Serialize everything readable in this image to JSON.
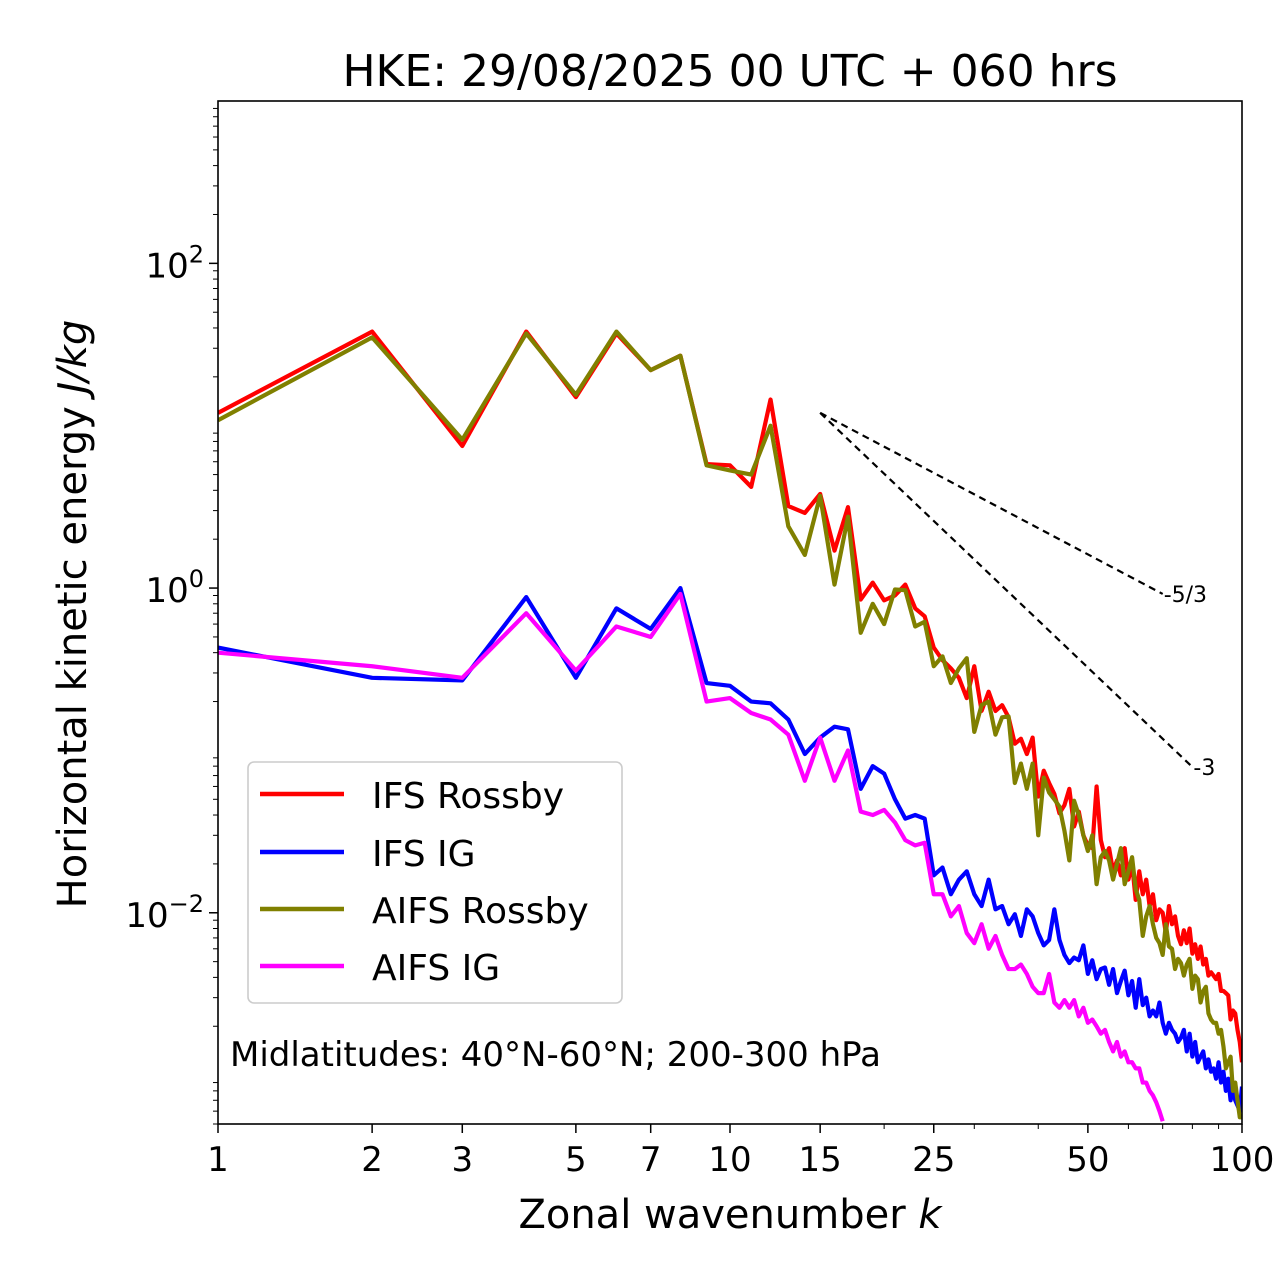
{
  "chart_data": {
    "type": "line",
    "title": "HKE: 29/08/2025 00 UTC + 060 hrs",
    "xlabel": "Zonal wavenumber",
    "xlabel_var": "k",
    "ylabel": "Horizontal kinetic energy",
    "ylabel_unit": "J/kg",
    "xscale": "log",
    "yscale": "log",
    "xlim": [
      1,
      100
    ],
    "ylim": [
      0.0005,
      1000
    ],
    "xticks": [
      {
        "value": 1,
        "label": "1"
      },
      {
        "value": 2,
        "label": "2"
      },
      {
        "value": 3,
        "label": "3"
      },
      {
        "value": 5,
        "label": "5"
      },
      {
        "value": 7,
        "label": "7"
      },
      {
        "value": 10,
        "label": "10"
      },
      {
        "value": 15,
        "label": "15"
      },
      {
        "value": 25,
        "label": "25"
      },
      {
        "value": 50,
        "label": "50"
      },
      {
        "value": 100,
        "label": "100"
      }
    ],
    "yticks": [
      {
        "value": 0.01,
        "base": "10",
        "exp": "−2"
      },
      {
        "value": 1,
        "base": "10",
        "exp": "0"
      },
      {
        "value": 100,
        "base": "10",
        "exp": "2"
      }
    ],
    "legend_location": "lower-left",
    "annotation": "Midlatitudes: 40°N-60°N; 200-300 hPa",
    "reference_lines": [
      {
        "slope": -1.6667,
        "label": "-5/3",
        "x": [
          15,
          70
        ],
        "y": [
          12.0,
          0.92
        ]
      },
      {
        "slope": -3,
        "label": "-3",
        "x": [
          15,
          80
        ],
        "y": [
          12.0,
          0.079
        ]
      }
    ],
    "series": [
      {
        "name": "IFS Rossby",
        "color": "#ff0000",
        "x": [
          1,
          2,
          3,
          4,
          5,
          6,
          7,
          8,
          9,
          10,
          11,
          12,
          13,
          14,
          15,
          16,
          17,
          18,
          19,
          20,
          21,
          22,
          23,
          24,
          25,
          26,
          27,
          28,
          29,
          30,
          31,
          32,
          33,
          34,
          35,
          36,
          37,
          38,
          39,
          40,
          41,
          42,
          43,
          44,
          45,
          46,
          47,
          48,
          49,
          50,
          51,
          52,
          53,
          54,
          55,
          56,
          57,
          58,
          59,
          60,
          61,
          62,
          63,
          64,
          65,
          66,
          67,
          68,
          69,
          70,
          71,
          72,
          73,
          74,
          75,
          76,
          77,
          78,
          79,
          80,
          81,
          82,
          83,
          84,
          85,
          86,
          87,
          88,
          89,
          90,
          91,
          92,
          93,
          94,
          95,
          96,
          97,
          98,
          99,
          100
        ],
        "y": [
          12.0,
          38.0,
          7.5,
          38.0,
          15.0,
          37.0,
          22.0,
          27.0,
          5.8,
          5.7,
          4.2,
          14.5,
          3.2,
          2.9,
          3.8,
          1.7,
          3.15,
          0.85,
          1.08,
          0.84,
          0.9,
          1.05,
          0.75,
          0.67,
          0.43,
          0.36,
          0.32,
          0.28,
          0.21,
          0.33,
          0.175,
          0.23,
          0.175,
          0.19,
          0.16,
          0.11,
          0.118,
          0.095,
          0.12,
          0.052,
          0.075,
          0.063,
          0.054,
          0.041,
          0.046,
          0.058,
          0.034,
          0.042,
          0.03,
          0.026,
          0.025,
          0.06,
          0.028,
          0.022,
          0.025,
          0.018,
          0.021,
          0.017,
          0.025,
          0.016,
          0.02,
          0.012,
          0.018,
          0.013,
          0.016,
          0.011,
          0.013,
          0.009,
          0.0105,
          0.01,
          0.0075,
          0.011,
          0.0085,
          0.0095,
          0.0072,
          0.0064,
          0.0078,
          0.0065,
          0.008,
          0.0056,
          0.0064,
          0.0052,
          0.0062,
          0.0048,
          0.0052,
          0.0041,
          0.0043,
          0.0041,
          0.0039,
          0.0042,
          0.0033,
          0.0033,
          0.0032,
          0.0031,
          0.0022,
          0.0025,
          0.0024,
          0.0019,
          0.0016,
          0.0012
        ]
      },
      {
        "name": "IFS IG",
        "color": "#0000ff",
        "x": [
          1,
          2,
          3,
          4,
          5,
          6,
          7,
          8,
          9,
          10,
          11,
          12,
          13,
          14,
          15,
          16,
          17,
          18,
          19,
          20,
          21,
          22,
          23,
          24,
          25,
          26,
          27,
          28,
          29,
          30,
          31,
          32,
          33,
          34,
          35,
          36,
          37,
          38,
          39,
          40,
          41,
          42,
          43,
          44,
          45,
          46,
          47,
          48,
          49,
          50,
          51,
          52,
          53,
          54,
          55,
          56,
          57,
          58,
          59,
          60,
          61,
          62,
          63,
          64,
          65,
          66,
          67,
          68,
          69,
          70,
          71,
          72,
          73,
          74,
          75,
          76,
          77,
          78,
          79,
          80,
          81,
          82,
          83,
          84,
          85,
          86,
          87,
          88,
          89,
          90,
          91,
          92,
          93,
          94,
          95,
          96,
          97,
          98,
          99,
          100
        ],
        "y": [
          0.43,
          0.28,
          0.27,
          0.88,
          0.28,
          0.75,
          0.56,
          1.0,
          0.26,
          0.25,
          0.2,
          0.195,
          0.155,
          0.095,
          0.12,
          0.14,
          0.135,
          0.058,
          0.08,
          0.072,
          0.05,
          0.038,
          0.04,
          0.038,
          0.017,
          0.019,
          0.013,
          0.016,
          0.018,
          0.013,
          0.011,
          0.016,
          0.0105,
          0.011,
          0.0085,
          0.0098,
          0.0072,
          0.0105,
          0.0095,
          0.0075,
          0.0063,
          0.0068,
          0.0105,
          0.0068,
          0.0055,
          0.0049,
          0.0053,
          0.0051,
          0.0063,
          0.0042,
          0.0051,
          0.0039,
          0.0045,
          0.0046,
          0.0036,
          0.0045,
          0.0032,
          0.0038,
          0.0044,
          0.0031,
          0.0038,
          0.0026,
          0.0039,
          0.0027,
          0.003,
          0.0023,
          0.0025,
          0.0023,
          0.0028,
          0.0021,
          0.0018,
          0.0021,
          0.0019,
          0.0018,
          0.0016,
          0.0017,
          0.0019,
          0.0014,
          0.0018,
          0.0013,
          0.0016,
          0.0012,
          0.0013,
          0.0014,
          0.0011,
          0.00125,
          0.00105,
          0.0011,
          0.00095,
          0.0012,
          0.0009,
          0.00105,
          0.0008,
          0.00095,
          0.0007,
          0.00085,
          0.0007,
          0.00065,
          0.0006,
          0.00085
        ]
      },
      {
        "name": "AIFS Rossby",
        "color": "#808000",
        "x": [
          1,
          2,
          3,
          4,
          5,
          6,
          7,
          8,
          9,
          10,
          11,
          12,
          13,
          14,
          15,
          16,
          17,
          18,
          19,
          20,
          21,
          22,
          23,
          24,
          25,
          26,
          27,
          28,
          29,
          30,
          31,
          32,
          33,
          34,
          35,
          36,
          37,
          38,
          39,
          40,
          41,
          42,
          43,
          44,
          45,
          46,
          47,
          48,
          49,
          50,
          51,
          52,
          53,
          54,
          55,
          56,
          57,
          58,
          59,
          60,
          61,
          62,
          63,
          64,
          65,
          66,
          67,
          68,
          69,
          70,
          71,
          72,
          73,
          74,
          75,
          76,
          77,
          78,
          79,
          80,
          81,
          82,
          83,
          84,
          85,
          86,
          87,
          88,
          89,
          90,
          91,
          92,
          93,
          94,
          95,
          96,
          97,
          98,
          99,
          100
        ],
        "y": [
          10.8,
          35.0,
          8.2,
          37.0,
          15.5,
          38.0,
          22.0,
          27.0,
          5.7,
          5.3,
          5.0,
          10.0,
          2.4,
          1.6,
          3.7,
          1.05,
          2.75,
          0.53,
          0.8,
          0.6,
          0.98,
          0.97,
          0.58,
          0.62,
          0.33,
          0.38,
          0.26,
          0.32,
          0.37,
          0.13,
          0.19,
          0.2,
          0.125,
          0.16,
          0.162,
          0.063,
          0.083,
          0.058,
          0.083,
          0.03,
          0.068,
          0.055,
          0.05,
          0.045,
          0.032,
          0.021,
          0.049,
          0.04,
          0.03,
          0.024,
          0.03,
          0.015,
          0.022,
          0.024,
          0.021,
          0.016,
          0.02,
          0.025,
          0.015,
          0.018,
          0.022,
          0.014,
          0.012,
          0.0072,
          0.0095,
          0.011,
          0.0085,
          0.007,
          0.0065,
          0.0055,
          0.0085,
          0.0062,
          0.006,
          0.0045,
          0.0052,
          0.0049,
          0.0041,
          0.0048,
          0.0052,
          0.0034,
          0.0041,
          0.0039,
          0.0028,
          0.0033,
          0.0035,
          0.0024,
          0.0022,
          0.0021,
          0.0021,
          0.0018,
          0.0019,
          0.0015,
          0.0011,
          0.0012,
          0.0013,
          0.0008,
          0.0009,
          0.0007,
          0.00055,
          0.00055
        ]
      },
      {
        "name": "AIFS IG",
        "color": "#ff00ff",
        "x": [
          1,
          2,
          3,
          4,
          5,
          6,
          7,
          8,
          9,
          10,
          11,
          12,
          13,
          14,
          15,
          16,
          17,
          18,
          19,
          20,
          21,
          22,
          23,
          24,
          25,
          26,
          27,
          28,
          29,
          30,
          31,
          32,
          33,
          34,
          35,
          36,
          37,
          38,
          39,
          40,
          41,
          42,
          43,
          44,
          45,
          46,
          47,
          48,
          49,
          50,
          51,
          52,
          53,
          54,
          55,
          56,
          57,
          58,
          59,
          60,
          61,
          62,
          63,
          64,
          65,
          66,
          67,
          68,
          69,
          70
        ],
        "y": [
          0.4,
          0.33,
          0.28,
          0.7,
          0.31,
          0.58,
          0.5,
          0.92,
          0.2,
          0.21,
          0.17,
          0.155,
          0.125,
          0.065,
          0.12,
          0.065,
          0.1,
          0.042,
          0.04,
          0.043,
          0.036,
          0.028,
          0.026,
          0.027,
          0.013,
          0.013,
          0.0095,
          0.011,
          0.0075,
          0.0065,
          0.0085,
          0.006,
          0.0072,
          0.0055,
          0.0045,
          0.0045,
          0.0048,
          0.0042,
          0.0035,
          0.0032,
          0.0032,
          0.0042,
          0.0028,
          0.0026,
          0.0029,
          0.0026,
          0.0029,
          0.0023,
          0.0026,
          0.0021,
          0.0022,
          0.002,
          0.0018,
          0.0019,
          0.0016,
          0.0014,
          0.0016,
          0.0013,
          0.0014,
          0.0012,
          0.0012,
          0.0011,
          0.0011,
          0.0009,
          0.0009,
          0.0008,
          0.00075,
          0.00068,
          0.0006,
          0.00052
        ]
      }
    ]
  }
}
